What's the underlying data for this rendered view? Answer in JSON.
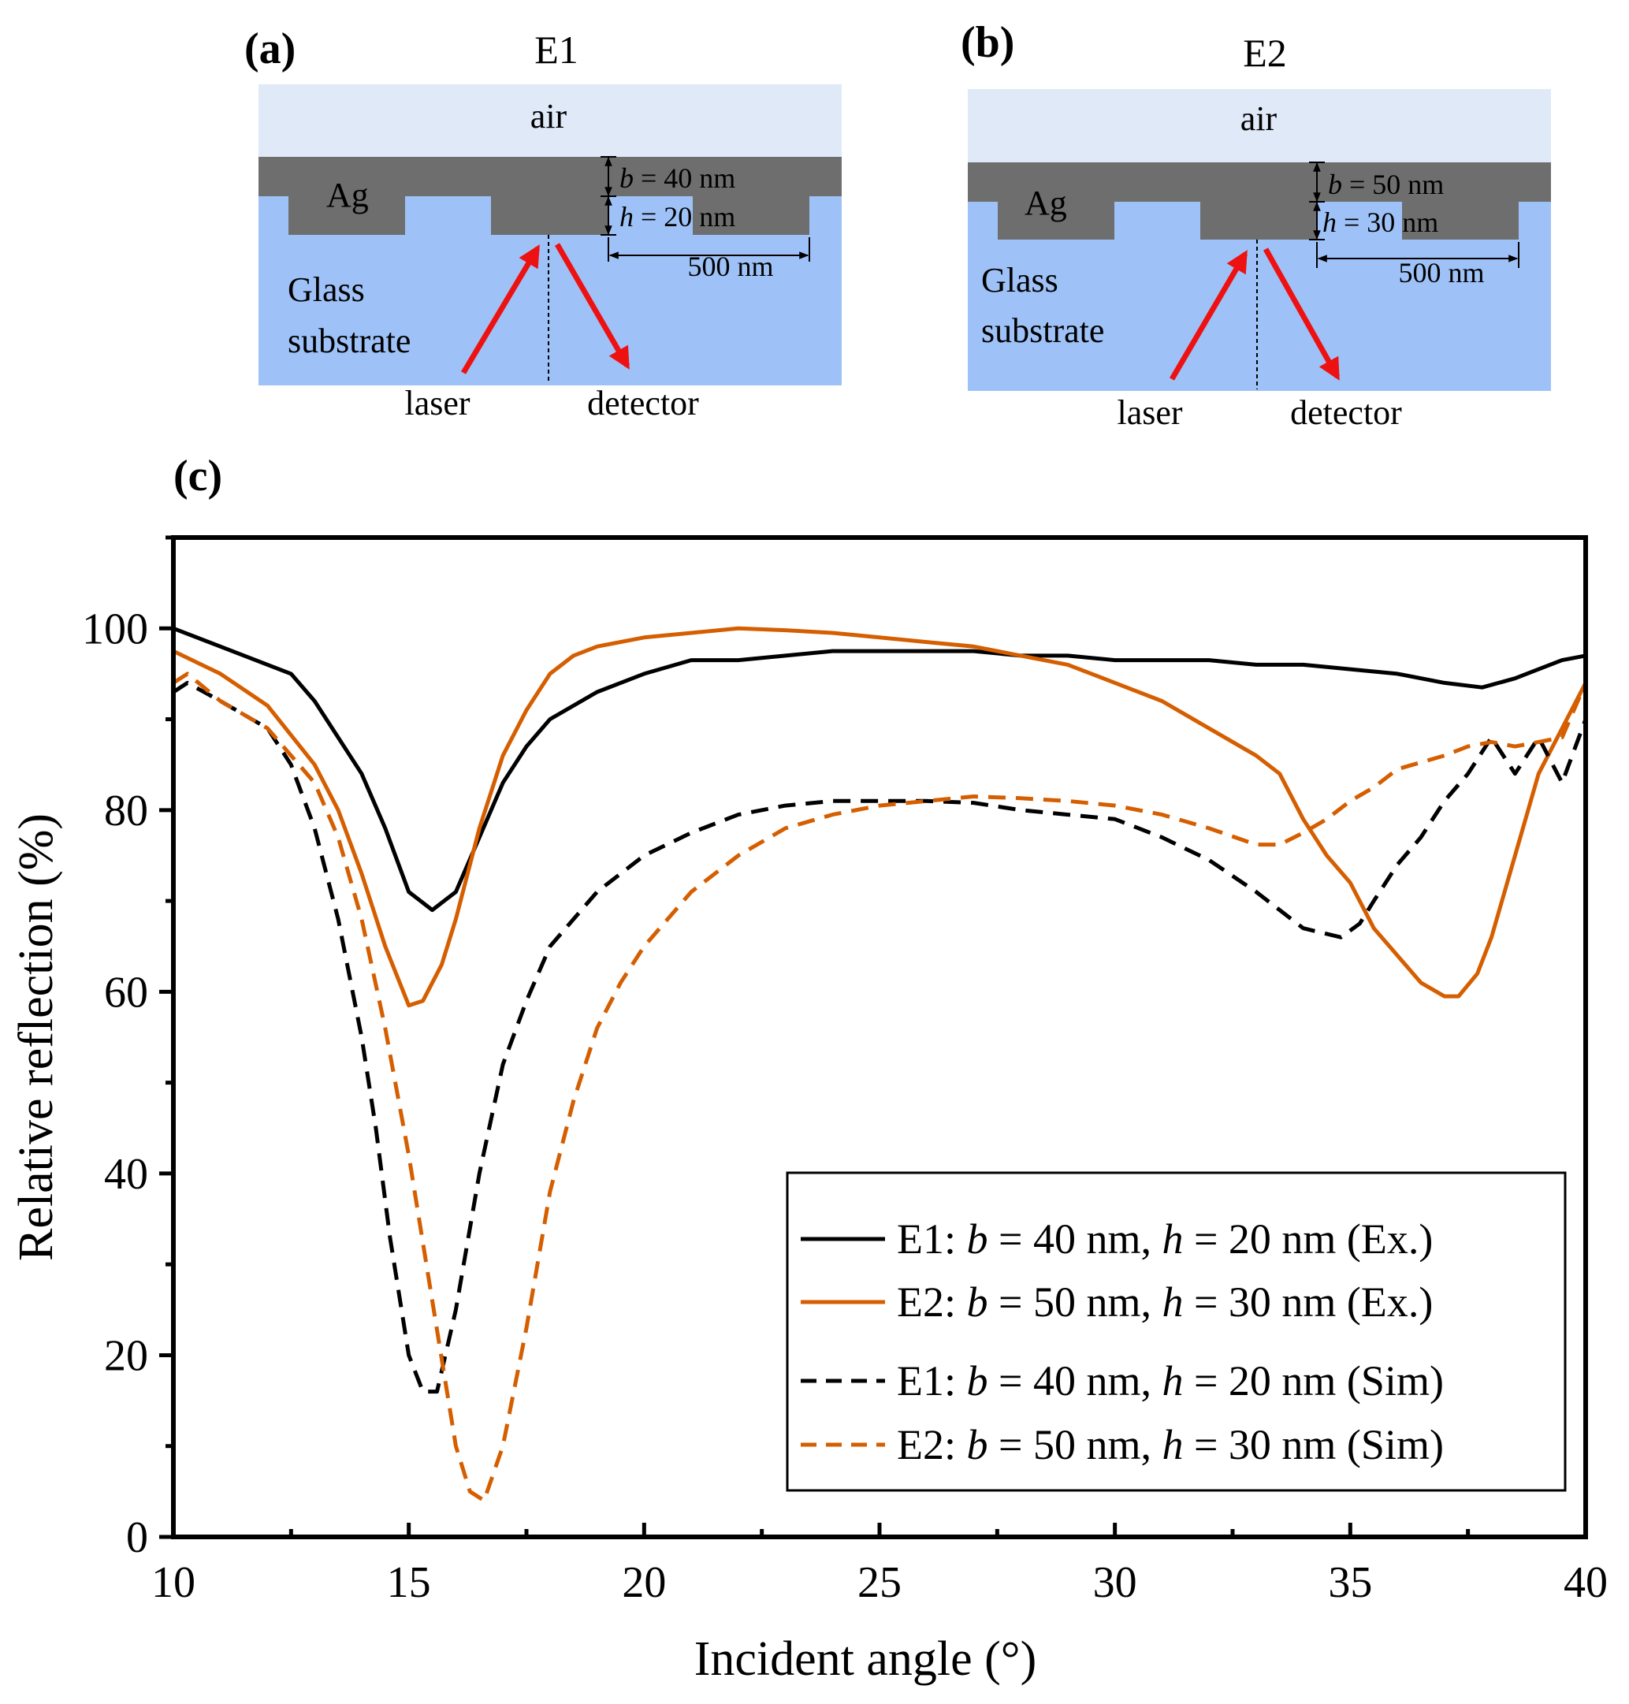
{
  "panels": {
    "a": {
      "label": "(a)",
      "title": "E1",
      "air": "air",
      "metal": "Ag",
      "glass_line1": "Glass",
      "glass_line2": "substrate",
      "laser": "laser",
      "detector": "detector",
      "b_sym": "b",
      "b_val": " = 40 nm",
      "h_sym": "h",
      "h_val": " = 20 nm",
      "period": "500 nm"
    },
    "b": {
      "label": "(b)",
      "title": "E2",
      "air": "air",
      "metal": "Ag",
      "glass_line1": "Glass",
      "glass_line2": "substrate",
      "laser": "laser",
      "detector": "detector",
      "b_sym": "b",
      "b_val": " = 50 nm",
      "h_sym": "h",
      "h_val": " = 30 nm",
      "period": "500 nm"
    },
    "c": {
      "label": "(c)"
    }
  },
  "colors": {
    "air": "#dfe9f8",
    "metal": "#6e6e6e",
    "glass": "#9ec2f7",
    "beam": "#ee1111",
    "e1": "#000000",
    "e2": "#d55e00"
  },
  "chart_data": {
    "type": "line",
    "xlabel": "Incident angle (°)",
    "ylabel": "Relative reflection (%)",
    "xlim": [
      10,
      40
    ],
    "ylim": [
      0,
      110
    ],
    "xticks": [
      10,
      15,
      20,
      25,
      30,
      35,
      40
    ],
    "yticks": [
      0,
      20,
      40,
      60,
      80,
      100
    ],
    "grid": false,
    "legend_position": "bottom-right",
    "series": [
      {
        "name": "E1: b = 40 nm, h = 20 nm (Ex.)",
        "name_parts": [
          "E1: ",
          "b",
          " = 40 nm, ",
          "h",
          " = 20 nm (Ex.)"
        ],
        "color": "#000000",
        "dash": false,
        "x": [
          10,
          11,
          12,
          12.5,
          13,
          14,
          14.5,
          15,
          15.5,
          16,
          16.5,
          17,
          17.5,
          18,
          19,
          20,
          21,
          22,
          23,
          24,
          25,
          26,
          27,
          28,
          29,
          30,
          31,
          32,
          33,
          34,
          35,
          36,
          37,
          37.8,
          38.5,
          39,
          39.5,
          40
        ],
        "y": [
          100,
          98,
          96,
          95,
          92,
          84,
          78,
          71,
          69,
          71,
          77,
          83,
          87,
          90,
          93,
          95,
          96.5,
          96.5,
          97,
          97.5,
          97.5,
          97.5,
          97.5,
          97,
          97,
          96.5,
          96.5,
          96.5,
          96,
          96,
          95.5,
          95,
          94,
          93.5,
          94.5,
          95.5,
          96.5,
          97
        ]
      },
      {
        "name": "E2: b = 50 nm, h = 30 nm (Ex.)",
        "name_parts": [
          "E2: ",
          "b",
          " = 50 nm, ",
          "h",
          " = 30 nm (Ex.)"
        ],
        "color": "#d55e00",
        "dash": false,
        "x": [
          10,
          11,
          12,
          13,
          13.5,
          14,
          14.5,
          15,
          15.3,
          15.7,
          16,
          16.5,
          17,
          17.5,
          18,
          18.5,
          19,
          20,
          21,
          22,
          23,
          24,
          25,
          26,
          27,
          28,
          29,
          30,
          31,
          32,
          33,
          33.5,
          34,
          34.5,
          35,
          35.5,
          36,
          36.5,
          37,
          37.3,
          37.7,
          38,
          38.5,
          39,
          39.5,
          40
        ],
        "y": [
          97.5,
          95,
          91.5,
          85,
          80,
          73,
          65,
          58.5,
          59,
          63,
          68,
          78,
          86,
          91,
          95,
          97,
          98,
          99,
          99.5,
          100,
          99.8,
          99.5,
          99,
          98.5,
          98,
          97,
          96,
          94,
          92,
          89,
          86,
          84,
          79,
          75,
          72,
          67,
          64,
          61,
          59.5,
          59.5,
          62,
          66,
          75,
          84,
          89,
          94
        ]
      },
      {
        "name": "E1: b = 40 nm, h = 20 nm (Sim)",
        "name_parts": [
          "E1: ",
          "b",
          " = 40 nm, ",
          "h",
          " = 20 nm (Sim)"
        ],
        "color": "#000000",
        "dash": true,
        "x": [
          10,
          10.3,
          11,
          12,
          12.5,
          13,
          13.5,
          14,
          14.3,
          14.6,
          15,
          15.3,
          15.6,
          16,
          16.5,
          17,
          17.5,
          18,
          19,
          20,
          21,
          22,
          23,
          24,
          25,
          26,
          27,
          28,
          29,
          30,
          31,
          32,
          33,
          34,
          34.8,
          35.2,
          35.5,
          36,
          36.5,
          37,
          37.5,
          38,
          38.5,
          39,
          39.5,
          40
        ],
        "y": [
          93,
          94,
          92,
          89,
          85,
          78,
          68,
          55,
          45,
          33,
          20,
          16,
          16,
          25,
          40,
          52,
          59,
          65,
          71,
          75,
          77.5,
          79.5,
          80.5,
          81,
          81,
          81,
          80.8,
          80,
          79.5,
          79,
          77,
          74.5,
          71,
          67,
          66,
          67.5,
          70,
          74,
          77,
          81,
          84,
          88,
          84,
          88,
          83,
          90
        ]
      },
      {
        "name": "E2: b = 50 nm, h = 30 nm (Sim)",
        "name_parts": [
          "E2: ",
          "b",
          " = 50 nm, ",
          "h",
          " = 30 nm (Sim)"
        ],
        "color": "#d55e00",
        "dash": true,
        "x": [
          10,
          10.3,
          11,
          12,
          13,
          13.5,
          14,
          14.5,
          15,
          15.5,
          16,
          16.3,
          16.6,
          17,
          17.5,
          18,
          18.5,
          19,
          19.5,
          20,
          21,
          22,
          23,
          24,
          25,
          26,
          27,
          28,
          29,
          30,
          31,
          32,
          33,
          33.5,
          34,
          34.5,
          35,
          35.5,
          36,
          37,
          37.5,
          38,
          38.5,
          39,
          39.5,
          40
        ],
        "y": [
          94,
          95,
          92,
          89,
          83,
          77,
          68,
          56,
          42,
          26,
          10,
          5,
          4,
          10,
          23,
          38,
          48,
          56,
          61,
          65,
          71,
          75,
          78,
          79.5,
          80.5,
          81,
          81.5,
          81.3,
          81,
          80.5,
          79.5,
          78,
          76.2,
          76.2,
          77.5,
          79,
          81,
          82.5,
          84.5,
          86,
          87,
          87.5,
          87,
          87.5,
          88,
          94
        ]
      }
    ]
  }
}
